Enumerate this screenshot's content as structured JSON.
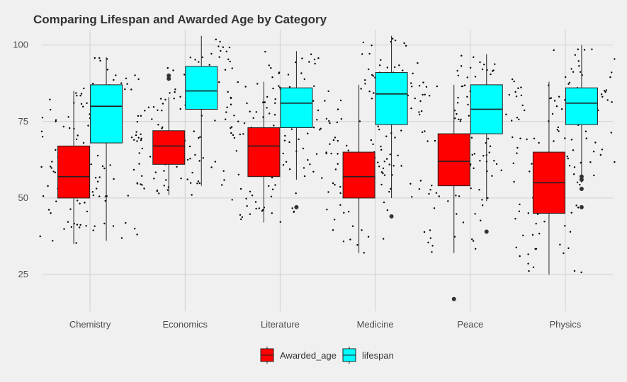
{
  "chart_data": {
    "type": "boxplot",
    "title": "Comparing Lifespan and Awarded Age by Category",
    "xlabel": "",
    "ylabel": "",
    "ylim": [
      13,
      105
    ],
    "yticks": [
      25,
      50,
      75,
      100
    ],
    "grid": true,
    "legend_position": "bottom",
    "categories": [
      "Chemistry",
      "Economics",
      "Literature",
      "Medicine",
      "Peace",
      "Physics"
    ],
    "series": [
      {
        "name": "Awarded_age",
        "color": "#ff0000",
        "boxes": [
          {
            "category": "Chemistry",
            "min": 35,
            "q1": 50,
            "median": 57,
            "q3": 67,
            "max": 85,
            "outliers": []
          },
          {
            "category": "Economics",
            "min": 51,
            "q1": 61,
            "median": 67,
            "q3": 72,
            "max": 83,
            "outliers": [
              89,
              90
            ]
          },
          {
            "category": "Literature",
            "min": 42,
            "q1": 57,
            "median": 67,
            "q3": 73,
            "max": 88,
            "outliers": []
          },
          {
            "category": "Medicine",
            "min": 32,
            "q1": 50,
            "median": 57,
            "q3": 65,
            "max": 87,
            "outliers": []
          },
          {
            "category": "Peace",
            "min": 32,
            "q1": 54,
            "median": 62,
            "q3": 71,
            "max": 87,
            "outliers": [
              17
            ]
          },
          {
            "category": "Physics",
            "min": 25,
            "q1": 45,
            "median": 55,
            "q3": 65,
            "max": 88,
            "outliers": []
          }
        ]
      },
      {
        "name": "lifespan",
        "color": "#00ffff",
        "boxes": [
          {
            "category": "Chemistry",
            "min": 36,
            "q1": 68,
            "median": 80,
            "q3": 87,
            "max": 96,
            "outliers": []
          },
          {
            "category": "Economics",
            "min": 54,
            "q1": 79,
            "median": 85,
            "q3": 93,
            "max": 103,
            "outliers": []
          },
          {
            "category": "Literature",
            "min": 56,
            "q1": 73,
            "median": 81,
            "q3": 86,
            "max": 98,
            "outliers": [
              47
            ]
          },
          {
            "category": "Medicine",
            "min": 50,
            "q1": 74,
            "median": 84,
            "q3": 91,
            "max": 103,
            "outliers": [
              44
            ]
          },
          {
            "category": "Peace",
            "min": 49,
            "q1": 71,
            "median": 79,
            "q3": 87,
            "max": 97,
            "outliers": [
              39
            ]
          },
          {
            "category": "Physics",
            "min": 55,
            "q1": 74,
            "median": 81,
            "q3": 86,
            "max": 100,
            "outliers": [
              57,
              56,
              53,
              47
            ]
          }
        ]
      }
    ]
  }
}
